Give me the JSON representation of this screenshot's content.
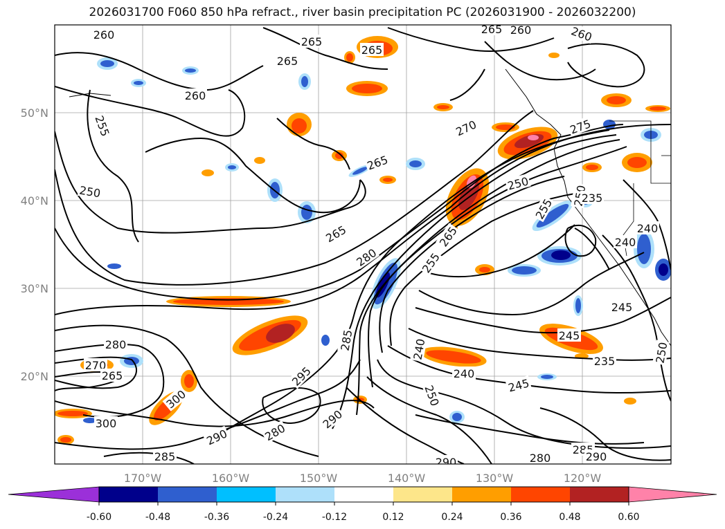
{
  "title": "2026031700 F060 850 hPa refract., river basin precipitation PC (2026031900 - 2026032200)",
  "axes": {
    "lat_labels": [
      "50°N",
      "40°N",
      "30°N",
      "20°N"
    ],
    "lon_labels": [
      "170°W",
      "160°W",
      "150°W",
      "140°W",
      "130°W",
      "120°W"
    ]
  },
  "contour_labels": [
    "260",
    "265",
    "265",
    "265",
    "260",
    "265",
    "260",
    "255",
    "270",
    "275",
    "250",
    "265",
    "250",
    "265",
    "280",
    "255",
    "265",
    "255",
    "250",
    "235",
    "240",
    "240",
    "245",
    "235",
    "280",
    "270",
    "265",
    "285",
    "300",
    "300",
    "295",
    "290",
    "280",
    "290",
    "285",
    "290",
    "280",
    "285",
    "290",
    "245",
    "240",
    "240",
    "250",
    "250",
    "245",
    "260"
  ],
  "colorbar": {
    "ticks": [
      "-0.60",
      "-0.48",
      "-0.36",
      "-0.24",
      "-0.12",
      "0.12",
      "0.24",
      "0.36",
      "0.48",
      "0.60"
    ],
    "colors": [
      "#9b30d9",
      "#00008b",
      "#2f5fcf",
      "#00bfff",
      "#aee0fa",
      "#ffffff",
      "#fde68a",
      "#ff9e00",
      "#ff4500",
      "#b22222",
      "#ff82a9"
    ]
  },
  "map_colors": {
    "blue_dark": "#00008b",
    "blue_mid": "#2f5fcf",
    "blue_light": "#aee0fa",
    "orange": "#ff4500",
    "amber": "#ff9e00",
    "yellow": "#fde68a",
    "red": "#b22222",
    "pink": "#ff82a9"
  }
}
